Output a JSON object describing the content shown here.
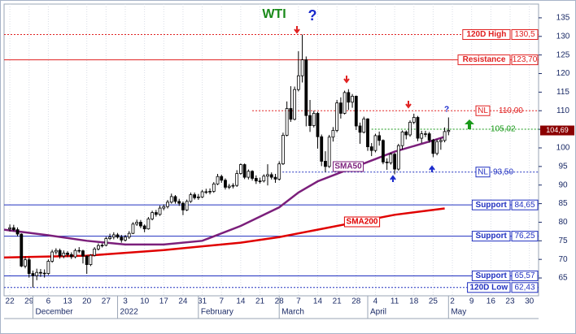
{
  "chart_data": {
    "type": "candlestick",
    "title": "WTI",
    "title_color": "#1a8a1a",
    "xlim": [
      -1.5,
      137.4
    ],
    "ylim": [
      60.2,
      138.7
    ],
    "grid": true,
    "yticks": [
      65,
      70,
      75,
      80,
      85,
      90,
      95,
      100,
      105,
      110,
      115,
      120,
      125,
      130,
      135
    ],
    "xticks": [
      {
        "value": 0,
        "label": "22"
      },
      {
        "value": 5,
        "label": "29"
      },
      {
        "value": 10,
        "label": "6"
      },
      {
        "value": 15,
        "label": "13"
      },
      {
        "value": 20,
        "label": "20"
      },
      {
        "value": 25,
        "label": "27"
      },
      {
        "value": 30,
        "label": "3"
      },
      {
        "value": 35,
        "label": "10"
      },
      {
        "value": 40,
        "label": "17"
      },
      {
        "value": 45,
        "label": "24"
      },
      {
        "value": 50,
        "label": "31"
      },
      {
        "value": 55,
        "label": "7"
      },
      {
        "value": 60,
        "label": "14"
      },
      {
        "value": 65,
        "label": "21"
      },
      {
        "value": 70,
        "label": "28"
      },
      {
        "value": 75,
        "label": "7"
      },
      {
        "value": 80,
        "label": "14"
      },
      {
        "value": 85,
        "label": "21"
      },
      {
        "value": 90,
        "label": "28"
      },
      {
        "value": 95,
        "label": "4"
      },
      {
        "value": 100,
        "label": "11"
      },
      {
        "value": 105,
        "label": "18"
      },
      {
        "value": 110,
        "label": "25"
      },
      {
        "value": 115,
        "label": "2"
      },
      {
        "value": 120,
        "label": "9"
      },
      {
        "value": 125,
        "label": "16"
      },
      {
        "value": 130,
        "label": "23"
      },
      {
        "value": 135,
        "label": "30"
      }
    ],
    "month_labels": [
      {
        "value": 6,
        "label": "December"
      },
      {
        "value": 28,
        "label": "2022"
      },
      {
        "value": 49,
        "label": "February"
      },
      {
        "value": 70,
        "label": "March"
      },
      {
        "value": 93,
        "label": "April"
      },
      {
        "value": 114,
        "label": "May"
      }
    ],
    "candles": {
      "up_color": "#ffffff",
      "down_color": "#000000",
      "x": [
        0,
        1,
        2,
        3,
        4,
        5,
        6,
        7,
        8,
        9,
        10,
        11,
        12,
        13,
        14,
        15,
        16,
        17,
        18,
        19,
        20,
        21,
        22,
        23,
        24,
        25,
        26,
        27,
        28,
        29,
        30,
        31,
        32,
        33,
        34,
        35,
        36,
        37,
        38,
        39,
        40,
        41,
        42,
        43,
        44,
        45,
        46,
        47,
        48,
        49,
        50,
        51,
        52,
        53,
        54,
        55,
        56,
        57,
        58,
        59,
        60,
        61,
        62,
        63,
        64,
        65,
        66,
        67,
        68,
        69,
        70,
        71,
        72,
        73,
        74,
        75,
        76,
        77,
        78,
        79,
        80,
        81,
        82,
        83,
        84,
        85,
        86,
        87,
        88,
        89,
        90,
        91,
        92,
        93,
        94,
        95,
        96,
        97,
        98,
        99,
        100,
        101,
        102,
        103,
        104,
        105,
        106,
        107,
        108,
        109,
        110,
        111,
        112,
        113,
        114
      ],
      "open": [
        78.2,
        78.5,
        78.0,
        76.8,
        68.2,
        69.9,
        66.2,
        65.6,
        66.5,
        66.3,
        66.2,
        69.5,
        72.0,
        72.4,
        70.9,
        71.7,
        71.3,
        70.7,
        72.4,
        72.3,
        70.9,
        68.6,
        71.1,
        72.8,
        73.7,
        73.8,
        75.6,
        76.0,
        76.6,
        76.0,
        75.2,
        76.0,
        77.0,
        79.5,
        80.0,
        79.0,
        78.2,
        80.9,
        82.6,
        82.1,
        83.8,
        84.2,
        85.4,
        86.9,
        85.6,
        85.1,
        83.3,
        85.6,
        87.4,
        86.6,
        86.8,
        88.2,
        88.2,
        88.3,
        90.3,
        92.3,
        91.3,
        89.4,
        89.7,
        89.9,
        93.1,
        95.5,
        92.1,
        93.7,
        91.8,
        91.1,
        91.1,
        92.4,
        92.8,
        92.1,
        91.6,
        95.7,
        103.4,
        110.6,
        107.7,
        115.7,
        119.4,
        123.7,
        108.7,
        106.0,
        109.3,
        103.0,
        96.4,
        95.0,
        102.9,
        104.7,
        112.1,
        109.3,
        114.9,
        112.3,
        113.9,
        105.9,
        104.2,
        107.8,
        100.3,
        99.3,
        103.3,
        102.0,
        96.2,
        96.0,
        98.3,
        94.3,
        100.6,
        104.3,
        103.5,
        106.9,
        108.2,
        102.6,
        103.8,
        103.8,
        102.1,
        98.5,
        101.7,
        102.0,
        104.4
      ],
      "high": [
        79.4,
        79.3,
        78.6,
        77.0,
        70.8,
        70.5,
        67.0,
        67.5,
        67.4,
        67.3,
        70.0,
        72.6,
        73.0,
        72.9,
        72.4,
        72.2,
        71.9,
        72.9,
        73.3,
        72.6,
        71.1,
        71.4,
        73.3,
        74.3,
        74.3,
        76.1,
        76.9,
        77.3,
        77.1,
        76.6,
        76.6,
        77.6,
        80.0,
        80.7,
        80.6,
        79.4,
        81.4,
        83.1,
        83.3,
        84.5,
        84.8,
        86.0,
        87.7,
        87.3,
        86.3,
        85.6,
        86.1,
        88.0,
        88.0,
        87.6,
        88.7,
        89.0,
        89.1,
        90.8,
        93.0,
        92.8,
        91.8,
        90.3,
        90.5,
        94.0,
        95.8,
        95.8,
        94.2,
        94.0,
        92.6,
        92.0,
        92.9,
        95.6,
        93.4,
        93.0,
        96.4,
        104.1,
        112.5,
        116.6,
        116.5,
        126.0,
        130.5,
        124.6,
        112.9,
        110.0,
        109.7,
        103.6,
        99.1,
        103.5,
        105.6,
        112.9,
        113.6,
        115.4,
        115.8,
        114.5,
        114.1,
        106.8,
        108.4,
        108.0,
        101.3,
        103.8,
        104.4,
        102.3,
        97.2,
        98.7,
        98.7,
        101.1,
        104.7,
        104.7,
        107.4,
        109.2,
        108.6,
        104.6,
        104.6,
        104.3,
        102.4,
        102.3,
        102.6,
        105.5,
        108.2
      ],
      "low": [
        77.5,
        77.6,
        76.2,
        67.9,
        67.6,
        65.1,
        62.43,
        64.4,
        65.3,
        65.1,
        65.8,
        69.1,
        71.3,
        70.2,
        70.3,
        70.6,
        70.1,
        70.3,
        71.7,
        68.9,
        66.1,
        68.2,
        70.8,
        72.4,
        73.2,
        73.5,
        75.2,
        75.4,
        75.6,
        74.5,
        74.8,
        75.5,
        76.8,
        79.0,
        78.4,
        77.3,
        78.0,
        80.5,
        81.5,
        81.7,
        83.2,
        83.7,
        85.0,
        85.0,
        84.4,
        81.9,
        83.0,
        85.2,
        86.1,
        86.0,
        86.5,
        87.6,
        87.5,
        87.9,
        90.0,
        90.6,
        88.8,
        88.9,
        89.1,
        89.5,
        92.8,
        91.6,
        91.5,
        91.2,
        90.3,
        90.4,
        90.7,
        89.9,
        91.5,
        90.6,
        91.2,
        95.4,
        103.1,
        107.0,
        107.4,
        115.2,
        117.6,
        105.8,
        104.3,
        105.5,
        99.8,
        95.1,
        93.5,
        94.6,
        101.7,
        104.2,
        107.9,
        109.0,
        110.2,
        110.8,
        104.8,
        101.1,
        103.9,
        99.2,
        97.8,
        98.8,
        100.6,
        95.6,
        94.1,
        95.5,
        92.9,
        93.9,
        99.6,
        102.3,
        103.0,
        106.4,
        101.8,
        101.3,
        102.9,
        101.4,
        97.5,
        98.0,
        99.5,
        101.5,
        103.4
      ],
      "close": [
        78.5,
        78.0,
        76.8,
        68.2,
        69.9,
        66.2,
        65.6,
        66.5,
        66.3,
        66.2,
        69.5,
        72.0,
        72.4,
        70.9,
        71.7,
        71.3,
        70.7,
        72.4,
        72.3,
        70.9,
        68.6,
        71.1,
        72.8,
        73.7,
        73.8,
        75.6,
        76.0,
        76.6,
        76.0,
        75.2,
        76.0,
        77.0,
        79.5,
        80.0,
        79.0,
        78.2,
        80.9,
        82.6,
        82.1,
        83.8,
        84.2,
        85.4,
        86.9,
        85.6,
        85.1,
        83.3,
        85.6,
        87.4,
        86.6,
        86.8,
        88.2,
        88.2,
        88.3,
        90.3,
        92.3,
        91.3,
        89.4,
        89.7,
        89.9,
        93.1,
        95.5,
        92.1,
        93.7,
        91.8,
        91.1,
        91.1,
        92.4,
        92.8,
        92.1,
        91.6,
        95.7,
        103.4,
        110.6,
        107.7,
        115.7,
        119.4,
        123.7,
        108.7,
        106.0,
        109.3,
        103.0,
        96.4,
        95.0,
        102.9,
        104.7,
        112.1,
        109.3,
        114.9,
        112.3,
        113.9,
        105.9,
        104.2,
        107.8,
        100.3,
        99.3,
        103.3,
        102.0,
        96.2,
        96.0,
        98.3,
        94.3,
        100.6,
        104.3,
        103.5,
        106.9,
        108.2,
        102.6,
        103.8,
        103.8,
        102.1,
        98.5,
        101.7,
        102.0,
        104.4,
        104.69
      ]
    },
    "series": [
      {
        "name": "SMA50",
        "color": "#7b1f7b",
        "x": [
          -1.5,
          10,
          20,
          30,
          40,
          50,
          60,
          70,
          75,
          80,
          90,
          100,
          110,
          113
        ],
        "values": [
          78,
          76.5,
          75,
          74,
          74,
          75,
          79,
          84,
          88,
          91,
          95,
          99,
          102,
          103
        ]
      },
      {
        "name": "SMA200",
        "color": "#e00000",
        "x": [
          -1.5,
          20,
          40,
          60,
          70,
          80,
          90,
          100,
          113
        ],
        "values": [
          70.5,
          71,
          72.5,
          74.5,
          76,
          78,
          80,
          82,
          83.7
        ]
      }
    ],
    "levels": [
      {
        "name": "120D High",
        "value": 130.5,
        "label": "130,5",
        "color": "#e02020",
        "style": "dotted",
        "boxed": true,
        "from": -1.5
      },
      {
        "name": "Resistance",
        "value": 123.7,
        "label": "123,70",
        "color": "#e02020",
        "style": "solid",
        "boxed": true,
        "from": -1.5
      },
      {
        "name": "NL",
        "value": 110,
        "label": "110,00",
        "color": "#e02020",
        "style": "dotted",
        "boxed": false,
        "from": 63
      },
      {
        "value": 105.02,
        "label": "105,02",
        "color": "#1a9a1a",
        "style": "dotted",
        "boxed": false,
        "from": 94
      },
      {
        "name": "NL",
        "value": 93.5,
        "label": "93,50",
        "color": "#2030c0",
        "style": "dotted",
        "boxed": false,
        "from": 70
      },
      {
        "name": "Support",
        "value": 84.65,
        "label": "84,65",
        "color": "#2030c0",
        "style": "solid",
        "boxed": true,
        "from": -1.5
      },
      {
        "name": "Support",
        "value": 76.25,
        "label": "76,25",
        "color": "#2030c0",
        "style": "solid",
        "boxed": true,
        "from": -1.5
      },
      {
        "name": "Support",
        "value": 65.57,
        "label": "65,57",
        "color": "#2030c0",
        "style": "solid",
        "boxed": true,
        "from": -1.5
      },
      {
        "name": "120D Low",
        "value": 62.43,
        "label": "62,43",
        "color": "#2030c0",
        "style": "dotted",
        "boxed": true,
        "from": -1.5
      }
    ],
    "price_tag": {
      "value": 104.69,
      "label": "104,69",
      "color": "#8b0000"
    },
    "annotations": [
      {
        "text": "?",
        "color": "#1a2acc"
      },
      {
        "text": "?",
        "color": "#1a2acc"
      }
    ]
  }
}
